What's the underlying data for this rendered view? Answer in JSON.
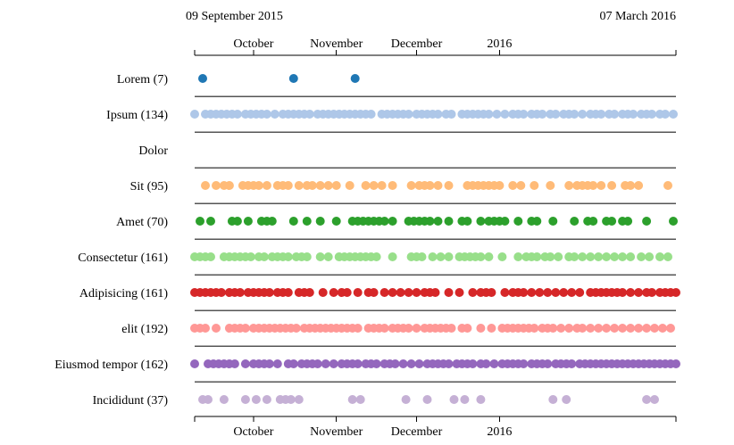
{
  "chart_data": {
    "type": "scatter",
    "start_date": "09 September 2015",
    "end_date": "07 March 2016",
    "x_domain": [
      "2015-09-09",
      "2016-03-07"
    ],
    "x_ticks": [
      {
        "date": "2015-10-01",
        "label": "October"
      },
      {
        "date": "2015-11-01",
        "label": "November"
      },
      {
        "date": "2015-12-01",
        "label": "December"
      },
      {
        "date": "2016-01-01",
        "label": "2016"
      }
    ],
    "series": [
      {
        "name": "Lorem (7)",
        "color": "#1f77b4",
        "dates": [
          "2015-09-12",
          "2015-10-16",
          "2015-11-08"
        ]
      },
      {
        "name": "Ipsum (134)",
        "color": "#aec7e8",
        "dates": [
          "2015-09-09",
          "2015-09-13",
          "2015-09-15",
          "2015-09-17",
          "2015-09-19",
          "2015-09-21",
          "2015-09-23",
          "2015-09-25",
          "2015-09-28",
          "2015-09-30",
          "2015-10-02",
          "2015-10-04",
          "2015-10-06",
          "2015-10-09",
          "2015-10-12",
          "2015-10-14",
          "2015-10-16",
          "2015-10-18",
          "2015-10-20",
          "2015-10-22",
          "2015-10-25",
          "2015-10-27",
          "2015-10-29",
          "2015-10-31",
          "2015-11-02",
          "2015-11-04",
          "2015-11-06",
          "2015-11-08",
          "2015-11-10",
          "2015-11-12",
          "2015-11-14",
          "2015-11-18",
          "2015-11-20",
          "2015-11-22",
          "2015-11-24",
          "2015-11-26",
          "2015-11-28",
          "2015-12-01",
          "2015-12-03",
          "2015-12-05",
          "2015-12-07",
          "2015-12-09",
          "2015-12-12",
          "2015-12-14",
          "2015-12-18",
          "2015-12-20",
          "2015-12-22",
          "2015-12-24",
          "2015-12-26",
          "2015-12-28",
          "2015-12-31",
          "2016-01-03",
          "2016-01-06",
          "2016-01-08",
          "2016-01-10",
          "2016-01-13",
          "2016-01-15",
          "2016-01-17",
          "2016-01-20",
          "2016-01-22",
          "2016-01-25",
          "2016-01-27",
          "2016-01-29",
          "2016-02-01",
          "2016-02-04",
          "2016-02-06",
          "2016-02-08",
          "2016-02-11",
          "2016-02-13",
          "2016-02-16",
          "2016-02-18",
          "2016-02-20",
          "2016-02-23",
          "2016-02-25",
          "2016-02-27",
          "2016-03-01",
          "2016-03-03",
          "2016-03-06"
        ]
      },
      {
        "name": "Dolor",
        "color": "#ff7f0e",
        "dates": []
      },
      {
        "name": "Sit (95)",
        "color": "#ffbb78",
        "dates": [
          "2015-09-13",
          "2015-09-17",
          "2015-09-20",
          "2015-09-22",
          "2015-09-27",
          "2015-09-29",
          "2015-10-01",
          "2015-10-03",
          "2015-10-06",
          "2015-10-10",
          "2015-10-12",
          "2015-10-14",
          "2015-10-18",
          "2015-10-21",
          "2015-10-23",
          "2015-10-26",
          "2015-10-29",
          "2015-11-01",
          "2015-11-06",
          "2015-11-12",
          "2015-11-15",
          "2015-11-18",
          "2015-11-22",
          "2015-11-29",
          "2015-12-02",
          "2015-12-04",
          "2015-12-06",
          "2015-12-09",
          "2015-12-13",
          "2015-12-20",
          "2015-12-22",
          "2015-12-24",
          "2015-12-26",
          "2015-12-28",
          "2015-12-30",
          "2016-01-01",
          "2016-01-06",
          "2016-01-09",
          "2016-01-14",
          "2016-01-20",
          "2016-01-27",
          "2016-01-30",
          "2016-02-01",
          "2016-02-03",
          "2016-02-05",
          "2016-02-08",
          "2016-02-12",
          "2016-02-17",
          "2016-02-19",
          "2016-02-22",
          "2016-03-04"
        ]
      },
      {
        "name": "Amet (70)",
        "color": "#2ca02c",
        "dates": [
          "2015-09-11",
          "2015-09-15",
          "2015-09-23",
          "2015-09-25",
          "2015-09-29",
          "2015-10-04",
          "2015-10-06",
          "2015-10-08",
          "2015-10-16",
          "2015-10-21",
          "2015-10-26",
          "2015-11-01",
          "2015-11-07",
          "2015-11-09",
          "2015-11-11",
          "2015-11-13",
          "2015-11-15",
          "2015-11-17",
          "2015-11-19",
          "2015-11-22",
          "2015-11-28",
          "2015-11-30",
          "2015-12-02",
          "2015-12-04",
          "2015-12-06",
          "2015-12-09",
          "2015-12-13",
          "2015-12-18",
          "2015-12-20",
          "2015-12-25",
          "2015-12-28",
          "2015-12-30",
          "2016-01-01",
          "2016-01-03",
          "2016-01-08",
          "2016-01-13",
          "2016-01-15",
          "2016-01-21",
          "2016-01-29",
          "2016-02-03",
          "2016-02-05",
          "2016-02-10",
          "2016-02-12",
          "2016-02-16",
          "2016-02-18",
          "2016-02-25",
          "2016-03-06"
        ]
      },
      {
        "name": "Consectetur (161)",
        "color": "#98df8a",
        "dates": [
          "2015-09-09",
          "2015-09-11",
          "2015-09-13",
          "2015-09-15",
          "2015-09-20",
          "2015-09-22",
          "2015-09-24",
          "2015-09-26",
          "2015-09-28",
          "2015-09-30",
          "2015-10-03",
          "2015-10-05",
          "2015-10-08",
          "2015-10-10",
          "2015-10-12",
          "2015-10-14",
          "2015-10-17",
          "2015-10-19",
          "2015-10-21",
          "2015-10-26",
          "2015-10-29",
          "2015-11-02",
          "2015-11-04",
          "2015-11-06",
          "2015-11-08",
          "2015-11-10",
          "2015-11-12",
          "2015-11-14",
          "2015-11-16",
          "2015-11-22",
          "2015-11-29",
          "2015-12-01",
          "2015-12-03",
          "2015-12-07",
          "2015-12-10",
          "2015-12-13",
          "2015-12-17",
          "2015-12-19",
          "2015-12-21",
          "2015-12-23",
          "2015-12-25",
          "2015-12-28",
          "2016-01-02",
          "2016-01-08",
          "2016-01-11",
          "2016-01-13",
          "2016-01-15",
          "2016-01-18",
          "2016-01-20",
          "2016-01-23",
          "2016-01-27",
          "2016-01-29",
          "2016-02-01",
          "2016-02-04",
          "2016-02-07",
          "2016-02-10",
          "2016-02-13",
          "2016-02-16",
          "2016-02-19",
          "2016-02-23",
          "2016-02-26",
          "2016-03-01",
          "2016-03-04"
        ]
      },
      {
        "name": "Adipisicing (161)",
        "color": "#d62728",
        "dates": [
          "2015-09-09",
          "2015-09-11",
          "2015-09-13",
          "2015-09-15",
          "2015-09-17",
          "2015-09-19",
          "2015-09-22",
          "2015-09-24",
          "2015-09-26",
          "2015-09-29",
          "2015-10-01",
          "2015-10-03",
          "2015-10-05",
          "2015-10-07",
          "2015-10-10",
          "2015-10-12",
          "2015-10-14",
          "2015-10-18",
          "2015-10-20",
          "2015-10-22",
          "2015-10-27",
          "2015-10-31",
          "2015-11-03",
          "2015-11-05",
          "2015-11-09",
          "2015-11-13",
          "2015-11-15",
          "2015-11-19",
          "2015-11-22",
          "2015-11-25",
          "2015-11-28",
          "2015-12-01",
          "2015-12-04",
          "2015-12-06",
          "2015-12-08",
          "2015-12-13",
          "2015-12-17",
          "2015-12-22",
          "2015-12-25",
          "2015-12-27",
          "2015-12-29",
          "2016-01-03",
          "2016-01-06",
          "2016-01-08",
          "2016-01-10",
          "2016-01-13",
          "2016-01-16",
          "2016-01-19",
          "2016-01-22",
          "2016-01-25",
          "2016-01-28",
          "2016-01-31",
          "2016-02-04",
          "2016-02-06",
          "2016-02-08",
          "2016-02-10",
          "2016-02-12",
          "2016-02-14",
          "2016-02-16",
          "2016-02-19",
          "2016-02-22",
          "2016-02-25",
          "2016-02-27",
          "2016-03-01",
          "2016-03-03",
          "2016-03-05",
          "2016-03-07"
        ]
      },
      {
        "name": "elit (192)",
        "color": "#ff9896",
        "dates": [
          "2015-09-09",
          "2015-09-11",
          "2015-09-13",
          "2015-09-17",
          "2015-09-22",
          "2015-09-24",
          "2015-09-26",
          "2015-09-28",
          "2015-10-01",
          "2015-10-03",
          "2015-10-05",
          "2015-10-07",
          "2015-10-09",
          "2015-10-11",
          "2015-10-13",
          "2015-10-15",
          "2015-10-17",
          "2015-10-20",
          "2015-10-22",
          "2015-10-24",
          "2015-10-26",
          "2015-10-28",
          "2015-10-30",
          "2015-11-01",
          "2015-11-03",
          "2015-11-05",
          "2015-11-07",
          "2015-11-09",
          "2015-11-13",
          "2015-11-15",
          "2015-11-17",
          "2015-11-19",
          "2015-11-22",
          "2015-11-24",
          "2015-11-26",
          "2015-11-28",
          "2015-12-01",
          "2015-12-04",
          "2015-12-06",
          "2015-12-08",
          "2015-12-10",
          "2015-12-12",
          "2015-12-14",
          "2015-12-18",
          "2015-12-20",
          "2015-12-25",
          "2015-12-29",
          "2016-01-02",
          "2016-01-04",
          "2016-01-06",
          "2016-01-08",
          "2016-01-10",
          "2016-01-12",
          "2016-01-14",
          "2016-01-17",
          "2016-01-19",
          "2016-01-21",
          "2016-01-24",
          "2016-01-27",
          "2016-01-30",
          "2016-02-01",
          "2016-02-04",
          "2016-02-07",
          "2016-02-10",
          "2016-02-13",
          "2016-02-16",
          "2016-02-19",
          "2016-02-22",
          "2016-02-25",
          "2016-02-28",
          "2016-03-02",
          "2016-03-05"
        ]
      },
      {
        "name": "Eiusmod tempor (162)",
        "color": "#9467bd",
        "dates": [
          "2015-09-09",
          "2015-09-14",
          "2015-09-16",
          "2015-09-18",
          "2015-09-20",
          "2015-09-22",
          "2015-09-24",
          "2015-09-28",
          "2015-10-01",
          "2015-10-03",
          "2015-10-05",
          "2015-10-07",
          "2015-10-10",
          "2015-10-14",
          "2015-10-16",
          "2015-10-19",
          "2015-10-21",
          "2015-10-23",
          "2015-10-25",
          "2015-10-28",
          "2015-10-31",
          "2015-11-03",
          "2015-11-05",
          "2015-11-07",
          "2015-11-09",
          "2015-11-12",
          "2015-11-14",
          "2015-11-16",
          "2015-11-19",
          "2015-11-21",
          "2015-11-23",
          "2015-11-26",
          "2015-11-29",
          "2015-12-02",
          "2015-12-05",
          "2015-12-07",
          "2015-12-09",
          "2015-12-11",
          "2015-12-13",
          "2015-12-16",
          "2015-12-18",
          "2015-12-20",
          "2015-12-22",
          "2015-12-25",
          "2015-12-27",
          "2015-12-30",
          "2016-01-02",
          "2016-01-04",
          "2016-01-06",
          "2016-01-08",
          "2016-01-10",
          "2016-01-13",
          "2016-01-15",
          "2016-01-17",
          "2016-01-19",
          "2016-01-22",
          "2016-01-24",
          "2016-01-26",
          "2016-01-28",
          "2016-01-31",
          "2016-02-02",
          "2016-02-04",
          "2016-02-06",
          "2016-02-08",
          "2016-02-10",
          "2016-02-12",
          "2016-02-14",
          "2016-02-16",
          "2016-02-18",
          "2016-02-20",
          "2016-02-22",
          "2016-02-24",
          "2016-02-26",
          "2016-02-28",
          "2016-03-01",
          "2016-03-03",
          "2016-03-05",
          "2016-03-07"
        ]
      },
      {
        "name": "Incididunt (37)",
        "color": "#c5b0d5",
        "dates": [
          "2015-09-12",
          "2015-09-14",
          "2015-09-20",
          "2015-09-28",
          "2015-10-02",
          "2015-10-06",
          "2015-10-11",
          "2015-10-13",
          "2015-10-15",
          "2015-10-18",
          "2015-11-07",
          "2015-11-10",
          "2015-11-27",
          "2015-12-05",
          "2015-12-15",
          "2015-12-19",
          "2015-12-25",
          "2016-01-21",
          "2016-01-26",
          "2016-02-25",
          "2016-02-28"
        ]
      }
    ]
  }
}
